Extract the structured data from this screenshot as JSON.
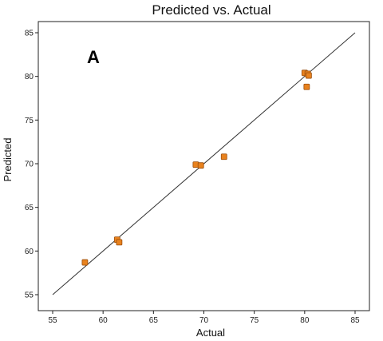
{
  "chart_data": {
    "type": "scatter",
    "title": "Predicted vs. Actual",
    "panel_label": "A",
    "xlabel": "Actual",
    "ylabel": "Predicted",
    "xlim": [
      55,
      85
    ],
    "ylim": [
      55,
      85
    ],
    "xticks": [
      55,
      60,
      65,
      70,
      75,
      80,
      85
    ],
    "yticks": [
      55,
      60,
      65,
      70,
      75,
      80,
      85
    ],
    "marker_color": "#e8821e",
    "marker_edge_color": "#9a4e0c",
    "line_color": "#333333",
    "grid": false,
    "reference_line": {
      "x": [
        55,
        85
      ],
      "y": [
        55,
        85
      ]
    },
    "points": [
      {
        "x": 58.2,
        "y": 58.7
      },
      {
        "x": 61.4,
        "y": 61.3
      },
      {
        "x": 61.6,
        "y": 61.0
      },
      {
        "x": 69.2,
        "y": 69.9
      },
      {
        "x": 69.7,
        "y": 69.8
      },
      {
        "x": 72.0,
        "y": 70.8
      },
      {
        "x": 80.0,
        "y": 80.4
      },
      {
        "x": 80.3,
        "y": 80.3
      },
      {
        "x": 80.2,
        "y": 78.8
      },
      {
        "x": 80.4,
        "y": 80.1
      }
    ]
  }
}
